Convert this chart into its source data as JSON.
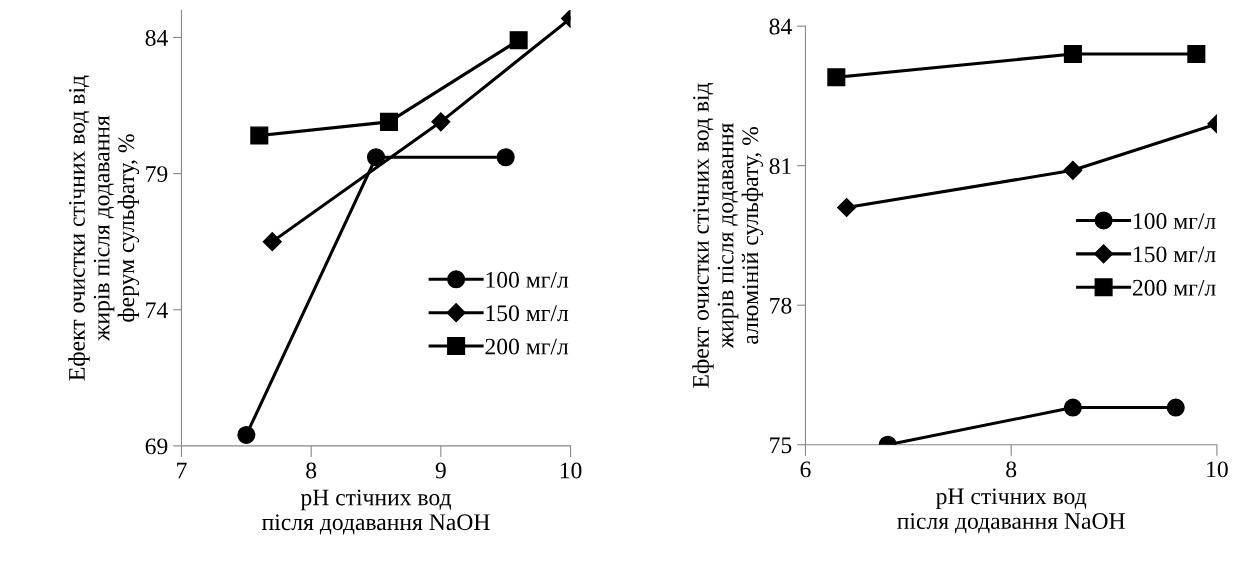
{
  "chart_data": [
    {
      "type": "line",
      "xlabel": "pH стічних вод\nпісля додавання NaOH",
      "ylabel": "Ефект очистки стічних вод від\nжирів після додавання\nферум сульфату, %",
      "xlim": [
        7,
        10
      ],
      "xticks": [
        7,
        8,
        9,
        10
      ],
      "ylim": [
        69,
        85
      ],
      "yticks": [
        69,
        74,
        79,
        84
      ],
      "legend": "right",
      "grid": false,
      "series": [
        {
          "name": "100 мг/л",
          "color": "#000000",
          "marker": "circle",
          "x": [
            7.5,
            8.5,
            9.5
          ],
          "values": [
            69.4,
            79.6,
            79.6
          ]
        },
        {
          "name": "150 мг/л",
          "color": "#000000",
          "marker": "diamond",
          "x": [
            7.7,
            9.0,
            10.0
          ],
          "values": [
            76.5,
            80.9,
            84.7
          ]
        },
        {
          "name": "200 мг/л",
          "color": "#000000",
          "marker": "square",
          "x": [
            7.6,
            8.6,
            9.6
          ],
          "values": [
            80.4,
            80.9,
            83.9
          ]
        }
      ]
    },
    {
      "type": "line",
      "xlabel": "pH стічних вод\nпісля додавання NaOH",
      "ylabel": "Ефект очистки стічних вод від\nжирів після додавання\nалюміній сульфату, %",
      "xlim": [
        6,
        10
      ],
      "xticks": [
        6,
        8,
        10
      ],
      "ylim": [
        75,
        84
      ],
      "yticks": [
        75,
        78,
        81,
        84
      ],
      "legend": "right",
      "grid": false,
      "series": [
        {
          "name": "100 мг/л",
          "color": "#000000",
          "marker": "circle",
          "x": [
            6.8,
            8.6,
            9.6
          ],
          "values": [
            75.0,
            75.8,
            75.8
          ]
        },
        {
          "name": "150 мг/л",
          "color": "#000000",
          "marker": "diamond",
          "x": [
            6.4,
            8.6,
            10.0
          ],
          "values": [
            80.1,
            80.9,
            81.9
          ]
        },
        {
          "name": "200 мг/л",
          "color": "#000000",
          "marker": "square",
          "x": [
            6.3,
            8.6,
            9.8
          ],
          "values": [
            82.9,
            83.4,
            83.4
          ]
        }
      ]
    }
  ]
}
